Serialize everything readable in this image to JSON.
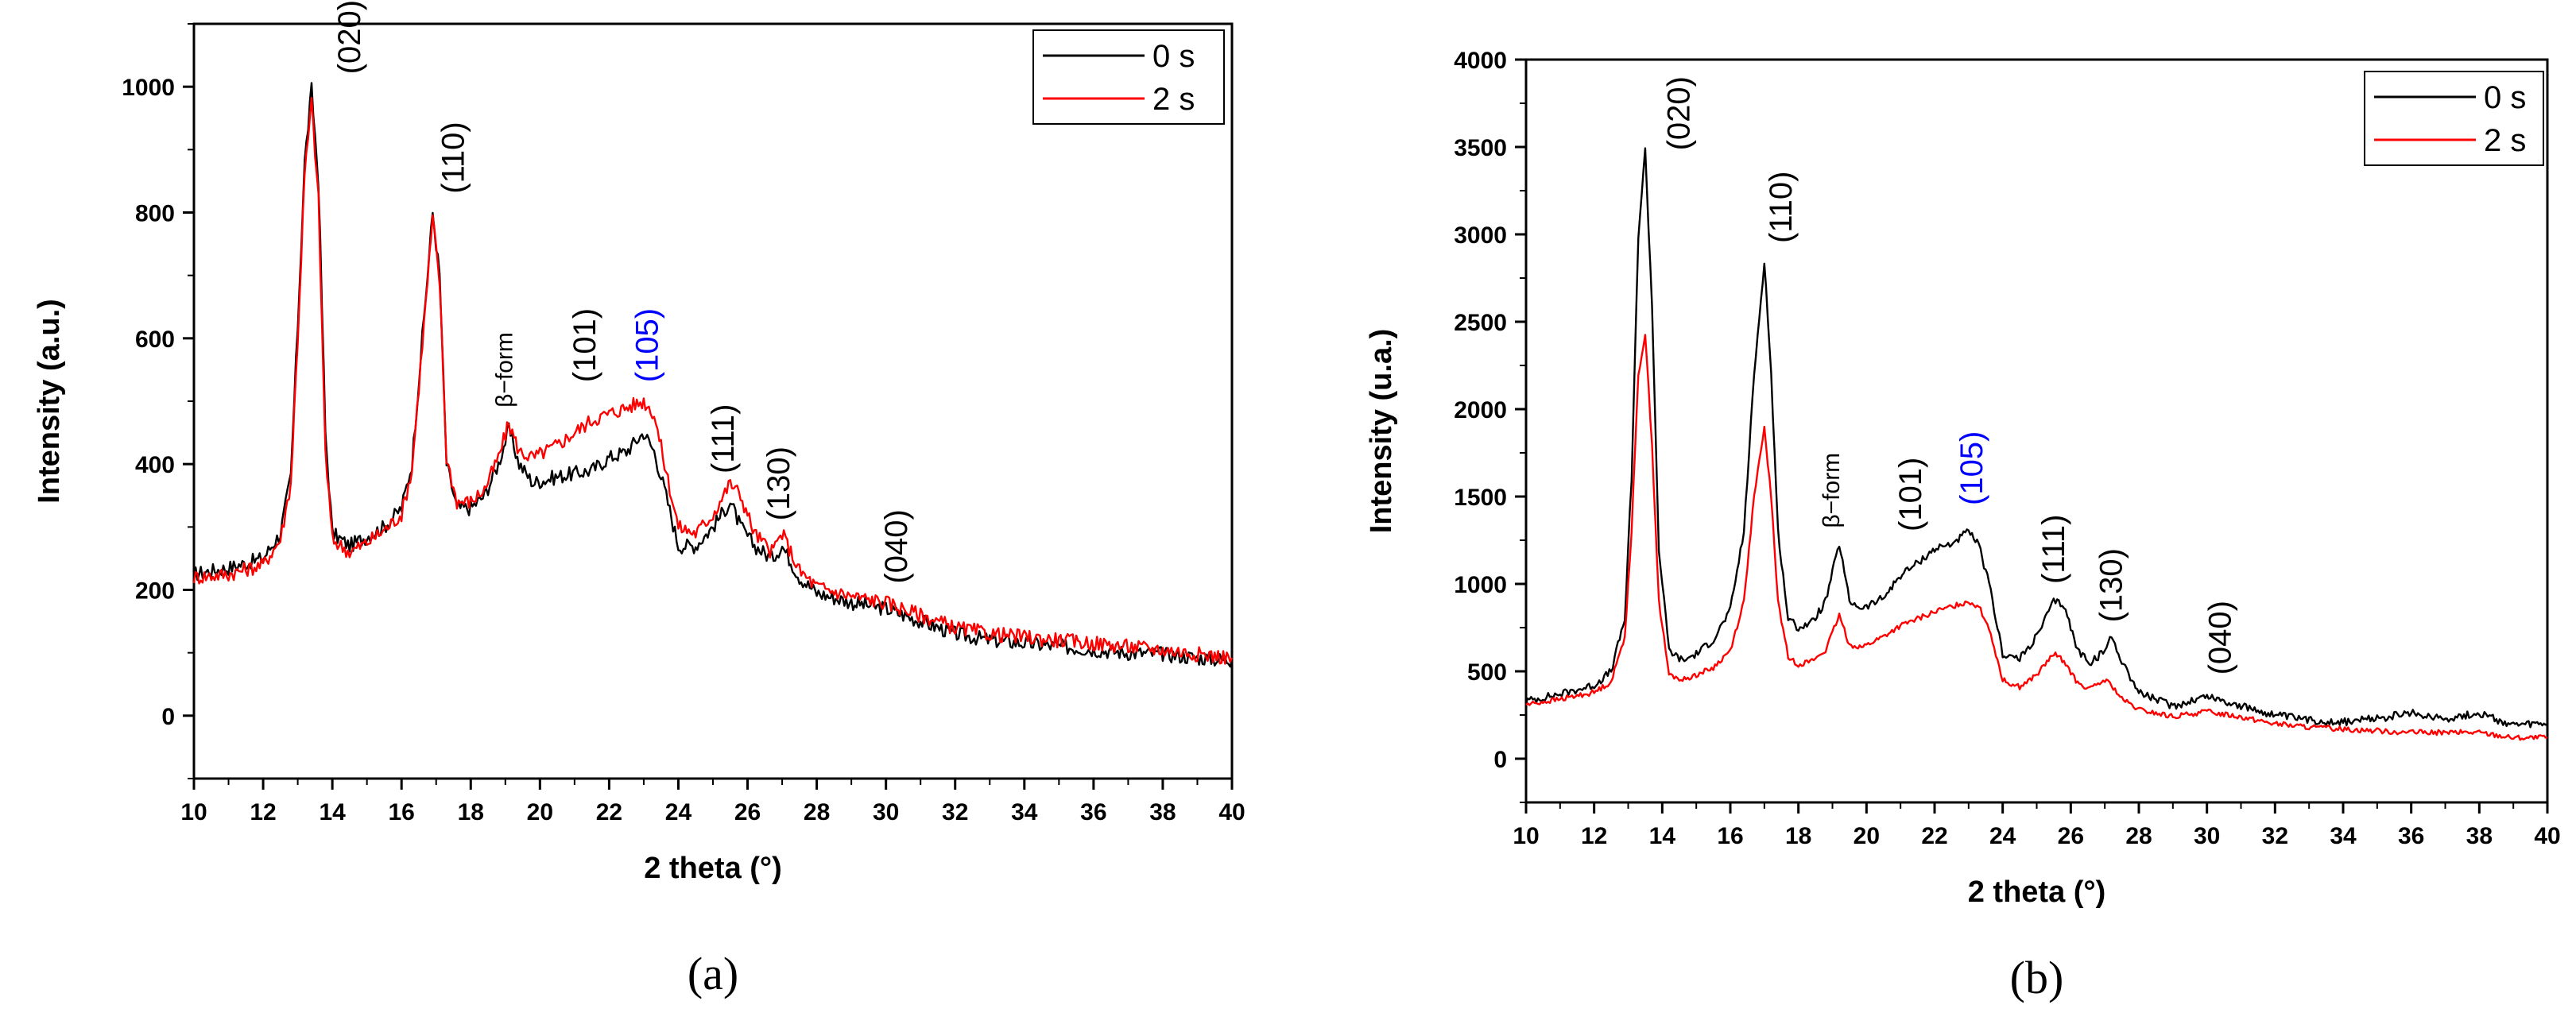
{
  "chart_data": [
    {
      "id": "a",
      "type": "line",
      "panel_label": "(a)",
      "xlabel": "2 theta (°)",
      "ylabel": "Intensity (a.u.)",
      "xlim": [
        10,
        40
      ],
      "ylim": [
        -100,
        1100
      ],
      "xticks": [
        10,
        12,
        14,
        16,
        18,
        20,
        22,
        24,
        26,
        28,
        30,
        32,
        34,
        36,
        38,
        40
      ],
      "yticks": [
        0,
        200,
        400,
        600,
        800,
        1000
      ],
      "legend": {
        "placement": "top-right",
        "entries": [
          "0 s",
          "2 s"
        ]
      },
      "series": [
        {
          "name": "0 s",
          "color": "#000000",
          "x": [
            10,
            11,
            12,
            12.5,
            12.8,
            13,
            13.2,
            13.4,
            13.6,
            13.8,
            14,
            14.5,
            15,
            15.5,
            16,
            16.3,
            16.6,
            16.9,
            17.1,
            17.3,
            17.6,
            18,
            18.4,
            18.8,
            19.1,
            19.4,
            19.8,
            20.5,
            21,
            21.5,
            22,
            22.5,
            23,
            23.3,
            23.6,
            24,
            24.5,
            25,
            25.5,
            25.8,
            26.2,
            26.7,
            27,
            27.5,
            28,
            29,
            30,
            31,
            32,
            33,
            34,
            35,
            36,
            37,
            38,
            39,
            40
          ],
          "y": [
            225,
            235,
            250,
            290,
            380,
            620,
            880,
            995,
            850,
            450,
            290,
            270,
            285,
            300,
            330,
            400,
            600,
            800,
            700,
            400,
            330,
            330,
            350,
            400,
            455,
            400,
            370,
            380,
            385,
            390,
            410,
            420,
            450,
            420,
            360,
            270,
            270,
            300,
            340,
            300,
            270,
            250,
            270,
            220,
            195,
            180,
            170,
            150,
            130,
            120,
            115,
            110,
            105,
            100,
            98,
            92,
            88
          ],
          "noise": 12
        },
        {
          "name": "2 s",
          "color": "#ff0000",
          "x": [
            10,
            11,
            12,
            12.5,
            12.8,
            13,
            13.2,
            13.4,
            13.6,
            13.8,
            14,
            14.5,
            15,
            15.5,
            16,
            16.3,
            16.6,
            16.9,
            17.1,
            17.3,
            17.6,
            18,
            18.4,
            18.8,
            19.1,
            19.4,
            19.8,
            20.5,
            21,
            21.5,
            22,
            22.5,
            23,
            23.3,
            23.6,
            24,
            24.5,
            25,
            25.5,
            25.8,
            26.2,
            26.7,
            27,
            27.5,
            28,
            29,
            30,
            31,
            32,
            33,
            34,
            35,
            36,
            37,
            38,
            39,
            40
          ],
          "y": [
            220,
            225,
            240,
            280,
            370,
            600,
            860,
            975,
            820,
            420,
            280,
            260,
            275,
            295,
            320,
            390,
            590,
            790,
            690,
            410,
            340,
            340,
            360,
            410,
            465,
            420,
            410,
            430,
            450,
            470,
            480,
            490,
            500,
            480,
            400,
            300,
            290,
            320,
            370,
            350,
            290,
            260,
            290,
            230,
            205,
            190,
            180,
            160,
            140,
            130,
            125,
            120,
            115,
            110,
            105,
            98,
            92
          ],
          "noise": 12
        }
      ],
      "annotations": [
        {
          "text": "(020)",
          "x": 14.8,
          "y": 1020,
          "color": "#000000"
        },
        {
          "text": "(110)",
          "x": 17.8,
          "y": 830,
          "color": "#000000"
        },
        {
          "text": "β−form",
          "x": 19.2,
          "y": 490,
          "color": "#000000",
          "small": true
        },
        {
          "text": "(101)",
          "x": 21.6,
          "y": 530,
          "color": "#000000"
        },
        {
          "text": "(105)",
          "x": 23.4,
          "y": 530,
          "color": "#0000ff"
        },
        {
          "text": "(111)",
          "x": 25.6,
          "y": 385,
          "color": "#000000"
        },
        {
          "text": "(130)",
          "x": 27.2,
          "y": 310,
          "color": "#000000"
        },
        {
          "text": "(040)",
          "x": 30.6,
          "y": 210,
          "color": "#000000"
        }
      ]
    },
    {
      "id": "b",
      "type": "line",
      "panel_label": "(b)",
      "xlabel": "2 theta (°)",
      "ylabel": "Intensity (u.a.)",
      "xlim": [
        10,
        40
      ],
      "ylim": [
        -250,
        4000
      ],
      "xticks": [
        10,
        12,
        14,
        16,
        18,
        20,
        22,
        24,
        26,
        28,
        30,
        32,
        34,
        36,
        38,
        40
      ],
      "yticks": [
        0,
        500,
        1000,
        1500,
        2000,
        2500,
        3000,
        3500,
        4000
      ],
      "legend": {
        "placement": "top-right",
        "entries": [
          "0 s",
          "2 s"
        ]
      },
      "series": [
        {
          "name": "0 s",
          "color": "#000000",
          "x": [
            10,
            11,
            12,
            12.5,
            12.9,
            13.1,
            13.3,
            13.5,
            13.7,
            13.9,
            14.2,
            14.6,
            15,
            15.5,
            16,
            16.4,
            16.7,
            17,
            17.2,
            17.4,
            17.7,
            18,
            18.4,
            18.8,
            19.2,
            19.5,
            19.9,
            20.5,
            21,
            21.5,
            22,
            22.5,
            23,
            23.3,
            23.6,
            24,
            24.5,
            25,
            25.5,
            25.8,
            26.2,
            26.6,
            27,
            27.2,
            27.5,
            28,
            29,
            30,
            31,
            32,
            33,
            34,
            35,
            36,
            37,
            38,
            39,
            40
          ],
          "y": [
            330,
            370,
            420,
            500,
            800,
            1600,
            3000,
            3480,
            2600,
            1200,
            620,
            560,
            600,
            680,
            850,
            1300,
            2200,
            2850,
            2200,
            1300,
            800,
            750,
            780,
            900,
            1230,
            900,
            860,
            920,
            1050,
            1120,
            1200,
            1230,
            1300,
            1220,
            1000,
            600,
            570,
            700,
            900,
            880,
            620,
            550,
            620,
            700,
            560,
            380,
            300,
            360,
            300,
            250,
            220,
            210,
            230,
            260,
            230,
            260,
            190,
            200
          ],
          "noise": 22
        },
        {
          "name": "2 s",
          "color": "#ff0000",
          "x": [
            10,
            11,
            12,
            12.5,
            12.9,
            13.1,
            13.3,
            13.5,
            13.7,
            13.9,
            14.2,
            14.6,
            15,
            15.5,
            16,
            16.4,
            16.7,
            17,
            17.2,
            17.4,
            17.7,
            18,
            18.4,
            18.8,
            19.2,
            19.5,
            19.9,
            20.5,
            21,
            21.5,
            22,
            22.5,
            23,
            23.3,
            23.6,
            24,
            24.5,
            25,
            25.5,
            25.8,
            26.2,
            26.6,
            27,
            27.2,
            27.5,
            28,
            29,
            30,
            31,
            32,
            33,
            34,
            35,
            36,
            37,
            38,
            39,
            40
          ],
          "y": [
            310,
            340,
            380,
            440,
            700,
            1300,
            2200,
            2430,
            1800,
            900,
            480,
            450,
            480,
            520,
            620,
            900,
            1500,
            1890,
            1500,
            900,
            580,
            540,
            560,
            620,
            820,
            650,
            640,
            700,
            760,
            800,
            840,
            870,
            900,
            870,
            750,
            450,
            410,
            480,
            600,
            560,
            430,
            400,
            450,
            420,
            340,
            280,
            240,
            270,
            240,
            200,
            180,
            170,
            160,
            150,
            150,
            150,
            120,
            120
          ],
          "noise": 15
        }
      ],
      "annotations": [
        {
          "text": "(020)",
          "x": 14.8,
          "y": 3480,
          "color": "#000000"
        },
        {
          "text": "(110)",
          "x": 17.8,
          "y": 2950,
          "color": "#000000"
        },
        {
          "text": "β−form",
          "x": 19.2,
          "y": 1320,
          "color": "#000000",
          "small": true
        },
        {
          "text": "(101)",
          "x": 21.6,
          "y": 1300,
          "color": "#000000"
        },
        {
          "text": "(105)",
          "x": 23.4,
          "y": 1450,
          "color": "#0000ff"
        },
        {
          "text": "(111)",
          "x": 25.8,
          "y": 1000,
          "color": "#000000"
        },
        {
          "text": "(130)",
          "x": 27.5,
          "y": 780,
          "color": "#000000"
        },
        {
          "text": "(040)",
          "x": 30.7,
          "y": 480,
          "color": "#000000"
        }
      ]
    }
  ]
}
